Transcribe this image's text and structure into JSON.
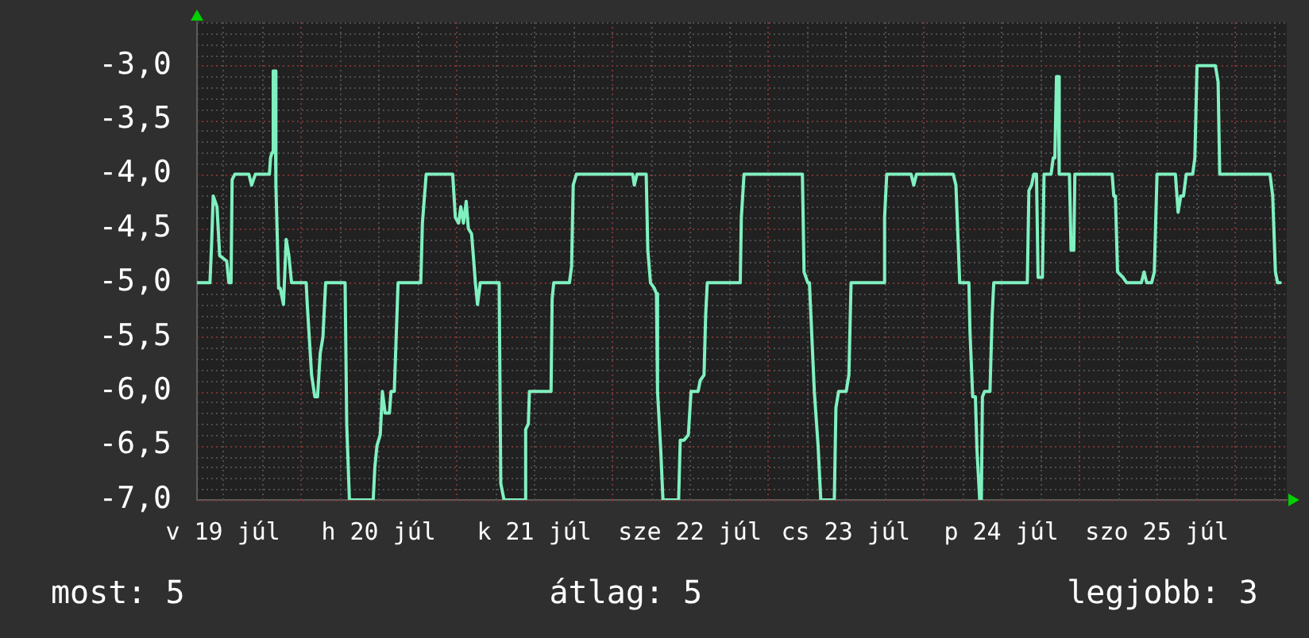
{
  "chart_data": {
    "type": "line",
    "color": "#80f0c0",
    "marker": "none",
    "grid": true,
    "annotations": [
      "most: 5",
      "átlag: 5",
      "legjobb: 3"
    ],
    "xlim": [
      "--07-19T08:00",
      "--07-26T08:00"
    ],
    "xticks": [
      {
        "value": "--07-19T12:00",
        "label": "v 19 júl"
      },
      {
        "value": "--07-19T18:00",
        "label": null
      },
      {
        "value": "--07-20T00:00",
        "label": null
      },
      {
        "value": "--07-20T06:00",
        "label": null
      },
      {
        "value": "--07-20T12:00",
        "label": "h 20 júl"
      },
      {
        "value": "--07-20T18:00",
        "label": null
      },
      {
        "value": "--07-21T00:00",
        "label": null
      },
      {
        "value": "--07-21T06:00",
        "label": null
      },
      {
        "value": "--07-21T12:00",
        "label": "k 21 júl"
      },
      {
        "value": "--07-21T18:00",
        "label": null
      },
      {
        "value": "--07-22T00:00",
        "label": null
      },
      {
        "value": "--07-22T06:00",
        "label": null
      },
      {
        "value": "--07-22T12:00",
        "label": "sze 22 júl"
      },
      {
        "value": "--07-22T18:00",
        "label": null
      },
      {
        "value": "--07-23T00:00",
        "label": null
      },
      {
        "value": "--07-23T06:00",
        "label": null
      },
      {
        "value": "--07-23T12:00",
        "label": "cs 23 júl"
      },
      {
        "value": "--07-23T18:00",
        "label": null
      },
      {
        "value": "--07-24T00:00",
        "label": null
      },
      {
        "value": "--07-24T06:00",
        "label": null
      },
      {
        "value": "--07-24T12:00",
        "label": "p 24 júl"
      },
      {
        "value": "--07-24T18:00",
        "label": null
      },
      {
        "value": "--07-25T00:00",
        "label": null
      },
      {
        "value": "--07-25T06:00",
        "label": null
      },
      {
        "value": "--07-25T12:00",
        "label": "szo 25 júl"
      },
      {
        "value": "--07-25T18:00",
        "label": null
      },
      {
        "value": "--07-26T00:00",
        "label": null
      },
      {
        "value": "--07-26T06:00",
        "label": null
      }
    ],
    "ylim": [
      -7,
      -2.6
    ],
    "yticks": [
      {
        "value": -7,
        "label": "-7,0"
      },
      {
        "value": -6.9,
        "label": null
      },
      {
        "value": -6.8,
        "label": null
      },
      {
        "value": -6.7,
        "label": null
      },
      {
        "value": -6.6,
        "label": null
      },
      {
        "value": -6.5,
        "label": "-6,5"
      },
      {
        "value": -6.4,
        "label": null
      },
      {
        "value": -6.3,
        "label": null
      },
      {
        "value": -6.2,
        "label": null
      },
      {
        "value": -6.1,
        "label": null
      },
      {
        "value": -6,
        "label": "-6,0"
      },
      {
        "value": -5.9,
        "label": null
      },
      {
        "value": -5.8,
        "label": null
      },
      {
        "value": -5.7,
        "label": null
      },
      {
        "value": -5.6,
        "label": null
      },
      {
        "value": -5.5,
        "label": "-5,5"
      },
      {
        "value": -5.4,
        "label": null
      },
      {
        "value": -5.3,
        "label": null
      },
      {
        "value": -5.2,
        "label": null
      },
      {
        "value": -5.1,
        "label": null
      },
      {
        "value": -5,
        "label": "-5,0"
      },
      {
        "value": -4.9,
        "label": null
      },
      {
        "value": -4.8,
        "label": null
      },
      {
        "value": -4.7,
        "label": null
      },
      {
        "value": -4.6,
        "label": null
      },
      {
        "value": -4.5,
        "label": "-4,5"
      },
      {
        "value": -4.4,
        "label": null
      },
      {
        "value": -4.3,
        "label": null
      },
      {
        "value": -4.2,
        "label": null
      },
      {
        "value": -4.1,
        "label": null
      },
      {
        "value": -4,
        "label": "-4,0"
      },
      {
        "value": -3.9,
        "label": null
      },
      {
        "value": -3.8,
        "label": null
      },
      {
        "value": -3.7,
        "label": null
      },
      {
        "value": -3.6,
        "label": null
      },
      {
        "value": -3.5,
        "label": "-3,5"
      },
      {
        "value": -3.4,
        "label": null
      },
      {
        "value": -3.3,
        "label": null
      },
      {
        "value": -3.2,
        "label": null
      },
      {
        "value": -3.1,
        "label": null
      },
      {
        "value": -3,
        "label": "-3,0"
      },
      {
        "value": -2.9,
        "label": null
      },
      {
        "value": -2.8,
        "label": null
      },
      {
        "value": -2.7,
        "label": null
      },
      {
        "value": -2.6,
        "label": null
      }
    ],
    "x": [
      "--07-19T08:00",
      "--07-19T10:00",
      "--07-19T10:15",
      "--07-19T10:30",
      "--07-19T11:05",
      "--07-19T11:30",
      "--07-19T12:35",
      "--07-19T12:55",
      "--07-19T13:15",
      "--07-19T13:25",
      "--07-19T13:50",
      "--07-19T16:00",
      "--07-19T16:25",
      "--07-19T17:00",
      "--07-19T19:10",
      "--07-19T19:20",
      "--07-19T19:35",
      "--07-19T19:45",
      "--07-19T20:00",
      "--07-19T20:10",
      "--07-19T20:35",
      "--07-19T20:50",
      "--07-19T21:20",
      "--07-19T21:45",
      "--07-19T22:10",
      "--07-19T22:35",
      "--07-20T00:50",
      "--07-20T01:00",
      "--07-20T01:40",
      "--07-20T02:10",
      "--07-20T02:35",
      "--07-20T03:00",
      "--07-20T03:25",
      "--07-20T03:50",
      "--07-20T06:50",
      "--07-20T07:05",
      "--07-20T07:30",
      "--07-20T11:10",
      "--07-20T11:25",
      "--07-20T11:45",
      "--07-20T12:15",
      "--07-20T12:35",
      "--07-20T13:00",
      "--07-20T13:40",
      "--07-20T13:55",
      "--07-20T14:25",
      "--07-20T15:00",
      "--07-20T18:30",
      "--07-20T18:45",
      "--07-20T19:20",
      "--07-20T23:25",
      "--07-20T23:50",
      "--07-21T00:20",
      "--07-21T00:40",
      "--07-21T01:05",
      "--07-21T01:30",
      "--07-21T01:50",
      "--07-21T02:20",
      "--07-21T02:40",
      "--07-21T02:55",
      "--07-21T03:15",
      "--07-21T03:40",
      "--07-21T06:35",
      "--07-21T06:50",
      "--07-21T07:20",
      "--07-21T10:30",
      "--07-21T10:40",
      "--07-21T11:05",
      "--07-21T11:15",
      "--07-21T14:35",
      "--07-21T14:45",
      "--07-21T15:00",
      "--07-21T17:25",
      "--07-21T17:45",
      "--07-21T18:00",
      "--07-21T18:30",
      "--07-22T03:10",
      "--07-22T03:25",
      "--07-22T03:50",
      "--07-22T05:15",
      "--07-22T05:30",
      "--07-22T05:55",
      "--07-22T06:30",
      "--07-22T06:50",
      "--07-22T07:00",
      "--07-22T07:30",
      "--07-22T07:50",
      "--07-22T10:15",
      "--07-22T10:30",
      "--07-22T11:05",
      "--07-22T11:45",
      "--07-22T12:10",
      "--07-22T13:15",
      "--07-22T13:35",
      "--07-22T14:10",
      "--07-22T14:25",
      "--07-22T14:40",
      "--07-22T19:45",
      "--07-22T19:55",
      "--07-22T20:20",
      "--07-23T05:20",
      "--07-23T05:35",
      "--07-23T06:10",
      "--07-23T06:25",
      "--07-23T07:10",
      "--07-23T07:45",
      "--07-23T08:10",
      "--07-23T10:15",
      "--07-23T10:30",
      "--07-23T10:55",
      "--07-23T12:05",
      "--07-23T12:30",
      "--07-23T12:50",
      "--07-23T17:50",
      "--07-23T18:00",
      "--07-23T18:20",
      "--07-23T22:05",
      "--07-23T22:30",
      "--07-23T22:55",
      "--07-24T04:35",
      "--07-24T05:00",
      "--07-24T05:35",
      "--07-24T07:00",
      "--07-24T07:10",
      "--07-24T07:35",
      "--07-24T08:00",
      "--07-24T08:15",
      "--07-24T08:40",
      "--07-24T08:55",
      "--07-24T09:05",
      "--07-24T09:25",
      "--07-24T10:15",
      "--07-24T10:35",
      "--07-24T10:50",
      "--07-24T11:05",
      "--07-24T16:00",
      "--07-24T16:15",
      "--07-24T16:40",
      "--07-24T17:00",
      "--07-24T17:25",
      "--07-24T17:40",
      "--07-24T18:20",
      "--07-24T18:35",
      "--07-24T19:40",
      "--07-24T20:00",
      "--07-24T20:15",
      "--07-24T20:30",
      "--07-24T20:45",
      "--07-24T20:55",
      "--07-24T22:30",
      "--07-24T22:45",
      "--07-24T23:10",
      "--07-24T23:20",
      "--07-25T05:05",
      "--07-25T05:20",
      "--07-25T05:35",
      "--07-25T05:55",
      "--07-25T06:45",
      "--07-25T07:20",
      "--07-25T09:35",
      "--07-25T10:00",
      "--07-25T10:25",
      "--07-25T11:10",
      "--07-25T11:35",
      "--07-25T12:00",
      "--07-25T14:50",
      "--07-25T15:15",
      "--07-25T15:40",
      "--07-25T16:05",
      "--07-25T16:30",
      "--07-25T17:30",
      "--07-25T17:50",
      "--07-25T18:10",
      "--07-25T21:00",
      "--07-25T21:25",
      "--07-25T21:40",
      "--07-26T05:25",
      "--07-26T05:50",
      "--07-26T06:15",
      "--07-26T06:35",
      "--07-26T07:00"
    ],
    "values": [
      -5,
      -5,
      -4.65,
      -4.2,
      -4.3,
      -4.75,
      -4.8,
      -5,
      -5,
      -4.05,
      -4,
      -4,
      -4.1,
      -4,
      -4,
      -3.85,
      -3.8,
      -3.05,
      -3.05,
      -4.1,
      -5.05,
      -5.05,
      -5.2,
      -4.6,
      -4.75,
      -5,
      -5,
      -5.2,
      -5.85,
      -6.05,
      -6.05,
      -5.65,
      -5.5,
      -5,
      -5,
      -6.3,
      -7,
      -7,
      -6.7,
      -6.5,
      -6.4,
      -6,
      -6.2,
      -6.2,
      -6,
      -6,
      -5,
      -5,
      -4.45,
      -4,
      -4,
      -4.4,
      -4.45,
      -4.3,
      -4.45,
      -4.25,
      -4.5,
      -4.55,
      -4.8,
      -5,
      -5.2,
      -5,
      -5,
      -6.85,
      -7,
      -7,
      -6.35,
      -6.3,
      -6,
      -6,
      -5.15,
      -5,
      -5,
      -4.85,
      -4.1,
      -4,
      -4,
      -4.1,
      -4,
      -4,
      -4.7,
      -5,
      -5.05,
      -5.1,
      -6,
      -6.55,
      -7,
      -7,
      -6.45,
      -6.45,
      -6.4,
      -6,
      -6,
      -5.9,
      -5.85,
      -5.3,
      -5,
      -5,
      -4.4,
      -4,
      -4,
      -4.9,
      -5,
      -5,
      -6,
      -6.5,
      -7,
      -7,
      -6.15,
      -6,
      -6,
      -5.85,
      -5,
      -5,
      -4.4,
      -4,
      -4,
      -4.1,
      -4,
      -4,
      -4.1,
      -5,
      -5,
      -5.45,
      -6.05,
      -6.05,
      -6.55,
      -7,
      -7,
      -6.05,
      -6,
      -6,
      -5.3,
      -5,
      -5,
      -5,
      -4.15,
      -4.1,
      -4,
      -4,
      -4.95,
      -4.95,
      -4,
      -4,
      -3.85,
      -3.85,
      -3.1,
      -3.1,
      -4,
      -4,
      -4.7,
      -4.7,
      -4,
      -4,
      -4.2,
      -4.2,
      -4.9,
      -4.95,
      -5,
      -5,
      -4.9,
      -5,
      -5,
      -4.9,
      -4,
      -4,
      -4.35,
      -4.2,
      -4.2,
      -4,
      -4,
      -3.85,
      -3,
      -3,
      -3.15,
      -4,
      -4,
      -4.2,
      -4.9,
      -5,
      -5
    ]
  }
}
